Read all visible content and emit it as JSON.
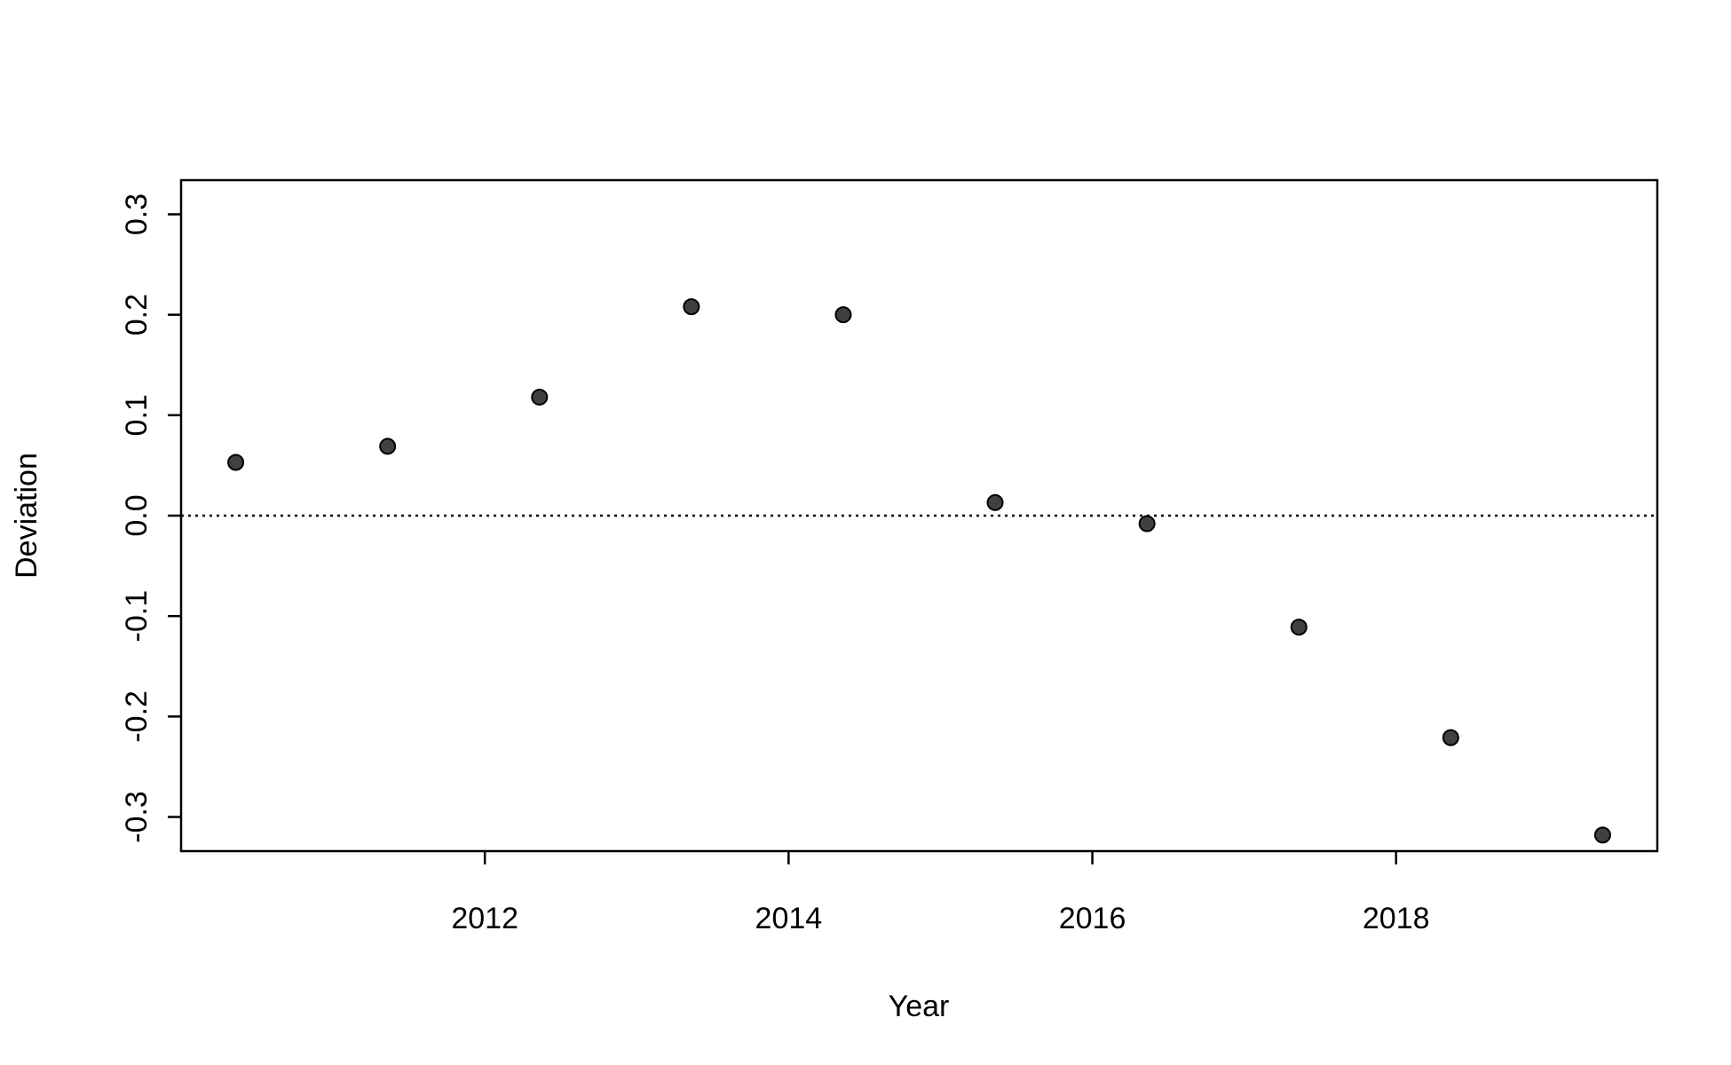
{
  "chart_data": {
    "type": "scatter",
    "x_label": "Year",
    "y_label": "Deviation",
    "x": [
      2010.36,
      2011.36,
      2012.36,
      2013.36,
      2014.36,
      2015.36,
      2016.36,
      2017.36,
      2018.36,
      2019.36
    ],
    "values": [
      0.053,
      0.069,
      0.118,
      0.208,
      0.2,
      0.013,
      -0.008,
      -0.111,
      -0.221,
      -0.318
    ],
    "color": "#404040",
    "xlim": [
      2010.0,
      2019.72
    ],
    "xticks": [
      2012,
      2014,
      2016,
      2018
    ],
    "ylim": [
      -0.334,
      0.334
    ],
    "yticks": [
      -0.3,
      -0.2,
      -0.1,
      {
        "value": 0,
        "label": "0.0"
      },
      0.1,
      0.2,
      0.3
    ],
    "hline": 0
  }
}
